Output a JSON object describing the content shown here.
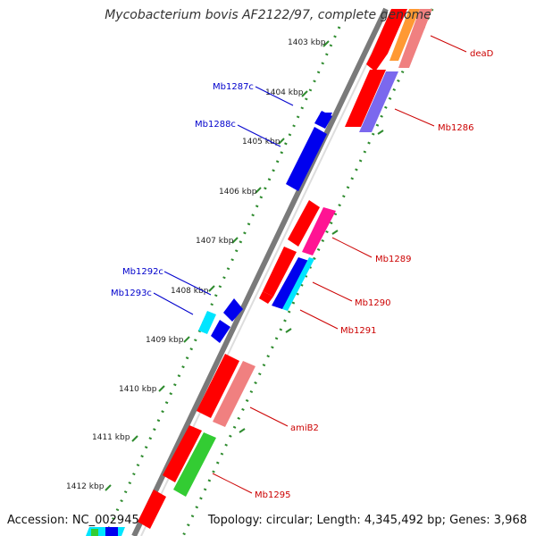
{
  "header": {
    "title": "Mycobacterium bovis AF2122/97, complete genome"
  },
  "footer": {
    "accession": "Accession: NC_002945",
    "summary": "Topology: circular; Length: 4,345,492 bp; Genes: 3,968"
  },
  "colors": {
    "backbone": "#7a7a7a",
    "tick_dots": "#2e8b2e",
    "label_forward": "#cc0000",
    "label_reverse": "#0000cc",
    "cds_red": "#ff0000",
    "cds_blue": "#0000ee",
    "cds_pink": "#f08080",
    "cds_magenta": "#ff1493",
    "cds_cyan": "#00e5ff",
    "cds_green": "#33cc33",
    "cds_purple": "#7b68ee",
    "cds_orange": "#ff9933"
  },
  "map": {
    "kbp_labels": [
      "1403 kbp",
      "1404 kbp",
      "1405 kbp",
      "1406 kbp",
      "1407 kbp",
      "1408 kbp",
      "1409 kbp",
      "1410 kbp",
      "1411 kbp",
      "1412 kbp"
    ],
    "forward_labels": [
      "deaD",
      "Mb1286",
      "Mb1289",
      "Mb1290",
      "Mb1291",
      "amiB2",
      "Mb1295"
    ],
    "reverse_labels": [
      "Mb1287c",
      "Mb1288c",
      "Mb1292c",
      "Mb1293c"
    ]
  }
}
